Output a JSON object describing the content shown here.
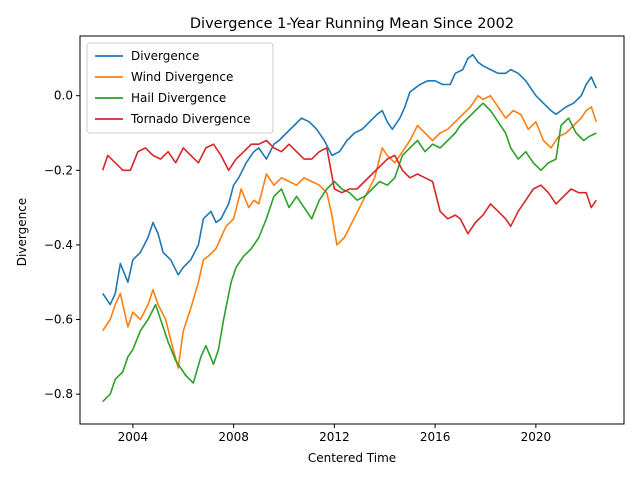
{
  "chart_data": {
    "type": "line",
    "title": "Divergence 1-Year Running Mean Since 2002",
    "xlabel": "Centered Time",
    "ylabel": "Divergence",
    "xlim": [
      2001.9,
      2023.5
    ],
    "ylim": [
      -0.88,
      0.16
    ],
    "x_ticks": [
      2004,
      2008,
      2012,
      2016,
      2020
    ],
    "x_tick_labels": [
      "2004",
      "2008",
      "2012",
      "2016",
      "2020"
    ],
    "y_ticks": [
      -0.8,
      -0.6,
      -0.4,
      -0.2,
      0.0
    ],
    "y_tick_labels": [
      "−0.8",
      "−0.6",
      "−0.4",
      "−0.2",
      "0.0"
    ],
    "grid": false,
    "legend_position": "upper-left",
    "series": [
      {
        "name": "Divergence",
        "color": "#1f77b4",
        "x": [
          2002.8,
          2003.1,
          2003.3,
          2003.5,
          2003.8,
          2004.0,
          2004.3,
          2004.6,
          2004.8,
          2005.0,
          2005.2,
          2005.5,
          2005.8,
          2006.0,
          2006.3,
          2006.6,
          2006.8,
          2007.1,
          2007.3,
          2007.5,
          2007.8,
          2008.0,
          2008.2,
          2008.5,
          2008.8,
          2009.0,
          2009.3,
          2009.6,
          2009.8,
          2010.1,
          2010.4,
          2010.7,
          2011.0,
          2011.3,
          2011.6,
          2011.9,
          2012.2,
          2012.5,
          2012.8,
          2013.1,
          2013.4,
          2013.7,
          2013.9,
          2014.1,
          2014.3,
          2014.6,
          2014.8,
          2015.0,
          2015.2,
          2015.4,
          2015.7,
          2016.0,
          2016.3,
          2016.6,
          2016.8,
          2017.1,
          2017.3,
          2017.5,
          2017.7,
          2017.9,
          2018.2,
          2018.5,
          2018.8,
          2019.0,
          2019.3,
          2019.6,
          2019.8,
          2020.0,
          2020.3,
          2020.6,
          2020.8,
          2021.0,
          2021.2,
          2021.5,
          2021.8,
          2022.0,
          2022.2,
          2022.4
        ],
        "y": [
          -0.53,
          -0.56,
          -0.53,
          -0.45,
          -0.5,
          -0.44,
          -0.42,
          -0.38,
          -0.34,
          -0.37,
          -0.42,
          -0.44,
          -0.48,
          -0.46,
          -0.44,
          -0.4,
          -0.33,
          -0.31,
          -0.34,
          -0.33,
          -0.29,
          -0.24,
          -0.22,
          -0.18,
          -0.15,
          -0.14,
          -0.17,
          -0.13,
          -0.12,
          -0.1,
          -0.08,
          -0.06,
          -0.07,
          -0.09,
          -0.12,
          -0.16,
          -0.15,
          -0.12,
          -0.1,
          -0.09,
          -0.07,
          -0.05,
          -0.04,
          -0.07,
          -0.09,
          -0.06,
          -0.03,
          0.01,
          0.02,
          0.03,
          0.04,
          0.04,
          0.03,
          0.03,
          0.06,
          0.07,
          0.1,
          0.11,
          0.09,
          0.08,
          0.07,
          0.06,
          0.06,
          0.07,
          0.06,
          0.04,
          0.02,
          0.0,
          -0.02,
          -0.04,
          -0.05,
          -0.04,
          -0.03,
          -0.02,
          0.0,
          0.03,
          0.05,
          0.02
        ]
      },
      {
        "name": "Wind Divergence",
        "color": "#ff7f0e",
        "x": [
          2002.8,
          2003.1,
          2003.3,
          2003.5,
          2003.8,
          2004.0,
          2004.3,
          2004.6,
          2004.8,
          2005.0,
          2005.3,
          2005.6,
          2005.8,
          2006.0,
          2006.3,
          2006.6,
          2006.8,
          2007.0,
          2007.3,
          2007.5,
          2007.7,
          2008.0,
          2008.3,
          2008.6,
          2008.8,
          2009.0,
          2009.3,
          2009.6,
          2009.9,
          2010.2,
          2010.5,
          2010.8,
          2011.1,
          2011.4,
          2011.7,
          2011.9,
          2012.1,
          2012.4,
          2012.7,
          2013.0,
          2013.3,
          2013.6,
          2013.9,
          2014.1,
          2014.4,
          2014.7,
          2015.0,
          2015.3,
          2015.6,
          2015.9,
          2016.2,
          2016.5,
          2016.8,
          2017.1,
          2017.4,
          2017.7,
          2017.9,
          2018.2,
          2018.5,
          2018.8,
          2019.1,
          2019.4,
          2019.7,
          2020.0,
          2020.3,
          2020.6,
          2020.9,
          2021.2,
          2021.5,
          2021.8,
          2022.0,
          2022.2,
          2022.4
        ],
        "y": [
          -0.63,
          -0.6,
          -0.56,
          -0.53,
          -0.62,
          -0.58,
          -0.6,
          -0.56,
          -0.52,
          -0.56,
          -0.6,
          -0.68,
          -0.73,
          -0.63,
          -0.57,
          -0.5,
          -0.44,
          -0.43,
          -0.41,
          -0.38,
          -0.35,
          -0.33,
          -0.25,
          -0.3,
          -0.28,
          -0.29,
          -0.21,
          -0.24,
          -0.22,
          -0.23,
          -0.24,
          -0.22,
          -0.23,
          -0.24,
          -0.26,
          -0.32,
          -0.4,
          -0.38,
          -0.34,
          -0.3,
          -0.26,
          -0.22,
          -0.14,
          -0.16,
          -0.18,
          -0.15,
          -0.12,
          -0.08,
          -0.1,
          -0.12,
          -0.1,
          -0.09,
          -0.07,
          -0.05,
          -0.03,
          0.0,
          -0.01,
          0.0,
          -0.03,
          -0.06,
          -0.04,
          -0.05,
          -0.09,
          -0.07,
          -0.12,
          -0.14,
          -0.11,
          -0.1,
          -0.08,
          -0.06,
          -0.04,
          -0.03,
          -0.07
        ]
      },
      {
        "name": "Hail Divergence",
        "color": "#2ca02c",
        "x": [
          2002.8,
          2003.1,
          2003.3,
          2003.6,
          2003.8,
          2004.0,
          2004.3,
          2004.6,
          2004.9,
          2005.1,
          2005.4,
          2005.7,
          2005.9,
          2006.1,
          2006.4,
          2006.7,
          2006.9,
          2007.2,
          2007.4,
          2007.6,
          2007.9,
          2008.1,
          2008.4,
          2008.7,
          2009.0,
          2009.3,
          2009.6,
          2009.9,
          2010.2,
          2010.5,
          2010.8,
          2011.1,
          2011.4,
          2011.7,
          2012.0,
          2012.3,
          2012.6,
          2012.9,
          2013.2,
          2013.5,
          2013.8,
          2014.1,
          2014.4,
          2014.7,
          2015.0,
          2015.3,
          2015.6,
          2015.9,
          2016.2,
          2016.5,
          2016.8,
          2017.0,
          2017.3,
          2017.6,
          2017.9,
          2018.2,
          2018.5,
          2018.8,
          2019.0,
          2019.3,
          2019.6,
          2019.9,
          2020.2,
          2020.5,
          2020.8,
          2021.0,
          2021.3,
          2021.6,
          2021.9,
          2022.1,
          2022.4
        ],
        "y": [
          -0.82,
          -0.8,
          -0.76,
          -0.74,
          -0.7,
          -0.68,
          -0.63,
          -0.6,
          -0.56,
          -0.6,
          -0.66,
          -0.71,
          -0.73,
          -0.75,
          -0.77,
          -0.7,
          -0.67,
          -0.72,
          -0.68,
          -0.6,
          -0.5,
          -0.46,
          -0.43,
          -0.41,
          -0.38,
          -0.33,
          -0.27,
          -0.25,
          -0.3,
          -0.27,
          -0.3,
          -0.33,
          -0.28,
          -0.25,
          -0.23,
          -0.25,
          -0.26,
          -0.28,
          -0.27,
          -0.25,
          -0.23,
          -0.24,
          -0.22,
          -0.16,
          -0.14,
          -0.12,
          -0.15,
          -0.13,
          -0.14,
          -0.12,
          -0.1,
          -0.08,
          -0.06,
          -0.04,
          -0.02,
          -0.04,
          -0.07,
          -0.1,
          -0.14,
          -0.17,
          -0.15,
          -0.18,
          -0.2,
          -0.18,
          -0.17,
          -0.08,
          -0.06,
          -0.1,
          -0.12,
          -0.11,
          -0.1
        ]
      },
      {
        "name": "Tornado Divergence",
        "color": "#d62728",
        "x": [
          2002.8,
          2003.0,
          2003.3,
          2003.6,
          2003.9,
          2004.2,
          2004.5,
          2004.8,
          2005.1,
          2005.4,
          2005.7,
          2006.0,
          2006.3,
          2006.6,
          2006.9,
          2007.2,
          2007.5,
          2007.8,
          2008.1,
          2008.4,
          2008.7,
          2009.0,
          2009.3,
          2009.6,
          2009.9,
          2010.2,
          2010.5,
          2010.8,
          2011.1,
          2011.4,
          2011.7,
          2012.0,
          2012.3,
          2012.6,
          2012.9,
          2013.2,
          2013.5,
          2013.8,
          2014.1,
          2014.4,
          2014.7,
          2015.0,
          2015.3,
          2015.6,
          2015.9,
          2016.2,
          2016.5,
          2016.8,
          2017.0,
          2017.3,
          2017.6,
          2017.9,
          2018.2,
          2018.5,
          2018.8,
          2019.0,
          2019.3,
          2019.6,
          2019.9,
          2020.2,
          2020.5,
          2020.8,
          2021.1,
          2021.4,
          2021.7,
          2022.0,
          2022.2,
          2022.4
        ],
        "y": [
          -0.2,
          -0.16,
          -0.18,
          -0.2,
          -0.2,
          -0.15,
          -0.14,
          -0.16,
          -0.17,
          -0.15,
          -0.18,
          -0.14,
          -0.16,
          -0.18,
          -0.14,
          -0.13,
          -0.16,
          -0.2,
          -0.17,
          -0.15,
          -0.13,
          -0.13,
          -0.12,
          -0.14,
          -0.15,
          -0.13,
          -0.15,
          -0.17,
          -0.17,
          -0.15,
          -0.14,
          -0.25,
          -0.26,
          -0.25,
          -0.25,
          -0.23,
          -0.21,
          -0.19,
          -0.17,
          -0.16,
          -0.2,
          -0.22,
          -0.21,
          -0.22,
          -0.23,
          -0.31,
          -0.33,
          -0.32,
          -0.33,
          -0.37,
          -0.34,
          -0.32,
          -0.29,
          -0.31,
          -0.33,
          -0.35,
          -0.31,
          -0.28,
          -0.25,
          -0.24,
          -0.26,
          -0.29,
          -0.27,
          -0.25,
          -0.26,
          -0.26,
          -0.3,
          -0.28
        ]
      }
    ]
  }
}
